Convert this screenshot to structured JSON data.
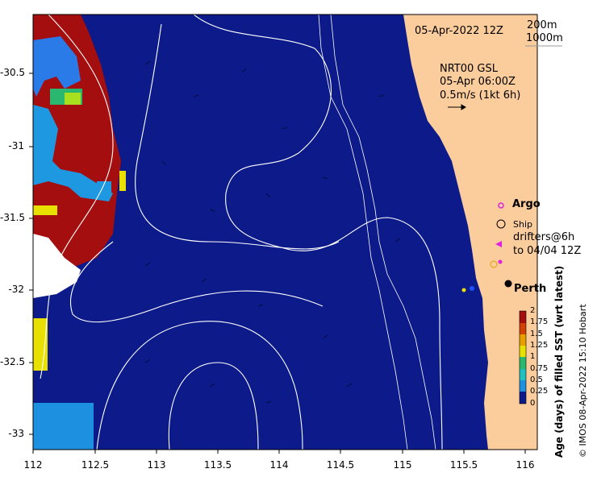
{
  "map": {
    "date": "05-Apr-2022 12Z",
    "depth_contours": [
      "200m",
      "1000m"
    ],
    "current_source": "NRT00 GSL",
    "current_time": "05-Apr 06:00Z",
    "scale_arrow": "0.5m/s (1kt 6h)",
    "legend": {
      "argo": "Argo",
      "ship": "Ship",
      "drifters_line1": "drifters@6h",
      "drifters_line2": "to 04/04 12Z"
    },
    "city": "Perth",
    "y_ticks": [
      "-30.5",
      "-31",
      "-31.5",
      "-32",
      "-32.5",
      "-33"
    ],
    "x_ticks": [
      "112",
      "112.5",
      "113",
      "113.5",
      "114",
      "114.5",
      "115",
      "115.5",
      "116"
    ],
    "colorbar": {
      "title": "Age (days) of filled SST (wrt latest)",
      "ticks": [
        "2",
        "1.75",
        "1.5",
        "1.25",
        "1",
        "0.75",
        "0.5",
        "0.25",
        "0"
      ]
    },
    "credit": "© IMOS 08-Apr-2022 15:10 Hobart",
    "colors": {
      "ocean": "#0c1a8a",
      "land": "#fbcc9c",
      "old_data": "#a50e0e",
      "argo": "#e020e0",
      "drifter": "#e020e0"
    }
  }
}
